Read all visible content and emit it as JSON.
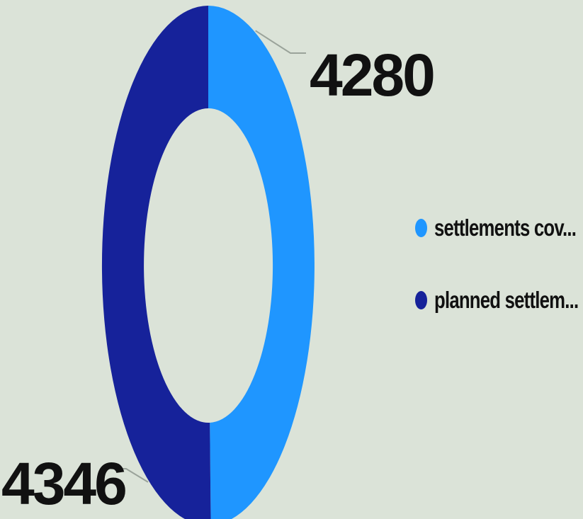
{
  "chart_data": {
    "type": "pie",
    "variant": "donut",
    "categories": [
      "settlements cov...",
      "planned settlem..."
    ],
    "values": [
      4280,
      4346
    ],
    "colors": [
      "#1f96ff",
      "#16229a"
    ],
    "data_labels": [
      "4280",
      "4346"
    ],
    "title": "",
    "legend": {
      "placement": "right",
      "items": [
        "settlements cov...",
        "planned settlem..."
      ]
    },
    "label_color": "#111111"
  }
}
